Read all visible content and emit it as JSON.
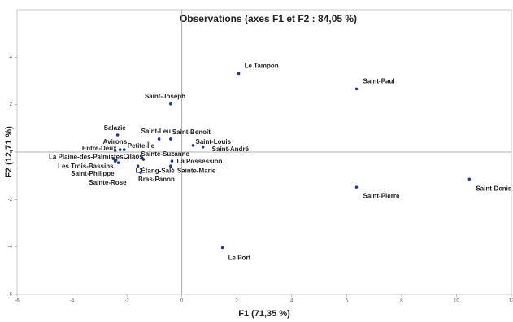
{
  "chart_data": {
    "type": "scatter",
    "title": "Observations (axes F1 et F2 : 84,05 %)",
    "x_label": "F1 (71,35 %)",
    "y_label": "F2 (12,71 %)",
    "labels": [
      "Le Tampon",
      "Saint-Paul",
      "Saint-Joseph",
      "Salazie",
      "Saint-Leu",
      "Saint-Benoît",
      "Saint-Louis",
      "Saint-André",
      "Avirons",
      "Entre-Deux",
      "Petite-Île",
      "Cilaos",
      "La Plaine-des-Palmistes",
      "Les Trois-Bassins",
      "Saint-Philippe",
      "Sainte-Rose",
      "Sainte-Suzanne",
      "La Possession",
      "Sainte-Marie",
      "L'Étang-Salé",
      "Bras-Panon",
      "Saint-Pierre",
      "Saint-Denis",
      "Le Port"
    ],
    "x": [
      2.07,
      6.36,
      -0.41,
      -2.34,
      -0.83,
      -0.41,
      0.41,
      0.77,
      -2.25,
      -2.43,
      -2.1,
      -1.45,
      -2.49,
      -2.43,
      -2.31,
      -2.4,
      -1.4,
      -0.36,
      -0.41,
      -1.6,
      -1.5,
      6.36,
      10.47,
      1.48
    ],
    "values": [
      3.31,
      2.66,
      2.03,
      0.72,
      0.55,
      0.55,
      0.28,
      0.21,
      0.1,
      0.07,
      0.1,
      -0.24,
      -0.28,
      -0.38,
      -0.45,
      -0.34,
      -0.31,
      -0.38,
      -0.59,
      -0.59,
      -0.86,
      -1.48,
      -1.14,
      -4.03
    ],
    "color": "#1f3a8a",
    "xlim": [
      -6,
      12
    ],
    "xticks": [
      -6,
      -4,
      -2,
      0,
      2,
      4,
      6,
      8,
      10,
      12
    ],
    "ylim": [
      -6,
      6
    ],
    "yticks": [
      -6,
      -4,
      -2,
      0,
      2,
      4
    ]
  }
}
